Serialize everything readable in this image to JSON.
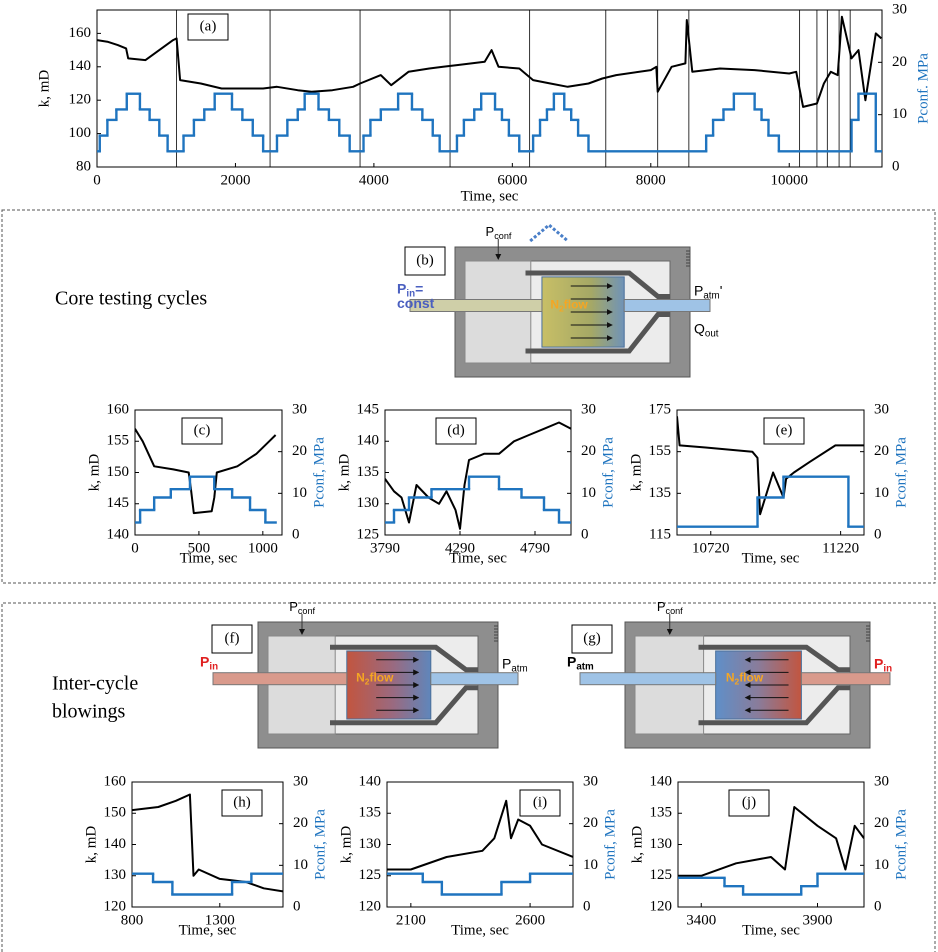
{
  "chart_data": [
    {
      "type": "line",
      "panel": "(a)",
      "xlabel": "Time, sec",
      "ylabel": "k, mD",
      "y2label": "Pconf. MPa",
      "xlim": [
        0,
        11340
      ],
      "ylim": [
        80,
        174
      ],
      "y2lim": [
        0,
        30
      ],
      "xticks": [
        0,
        2000,
        4000,
        6000,
        8000,
        10000
      ],
      "yticks": [
        80,
        100,
        120,
        140,
        160
      ],
      "y2ticks": [
        0,
        10,
        20,
        30
      ],
      "vlines": [
        1150,
        2500,
        3800,
        5100,
        6250,
        7350,
        8100,
        8550,
        10150,
        10400,
        10550,
        10720,
        10880
      ],
      "series": [
        {
          "color": "#000000",
          "x": [
            0,
            150,
            300,
            420,
            450,
            700,
            900,
            1100,
            1150,
            1200,
            1500,
            1800,
            2100,
            2400,
            2600,
            2900,
            3100,
            3400,
            3700,
            3800,
            4100,
            4250,
            4500,
            4800,
            5000,
            5200,
            5600,
            5700,
            5800,
            6100,
            6300,
            6550,
            6800,
            7100,
            7300,
            7500,
            8000,
            8080,
            8100,
            8300,
            8500,
            8520,
            8600,
            9000,
            9500,
            10000,
            10100,
            10200,
            10400,
            10500,
            10600,
            10700,
            10760,
            10900,
            11000,
            11100,
            11250,
            11330
          ],
          "values": [
            156,
            155,
            153,
            151,
            145,
            144,
            150,
            156,
            157,
            132,
            130,
            127,
            127,
            127,
            128,
            126,
            125,
            126,
            128,
            130,
            135,
            129,
            137,
            139,
            140,
            141,
            143,
            150,
            140,
            139,
            132,
            130,
            128,
            130,
            133,
            135,
            138,
            140,
            125,
            140,
            142,
            168,
            137,
            139,
            138,
            136,
            137,
            116,
            118,
            130,
            137,
            135,
            170,
            145,
            150,
            120,
            160,
            157
          ]
        },
        {
          "color": "#1f74bf",
          "axis": "y2",
          "step": true,
          "bins": [
            0,
            40,
            150,
            280,
            430,
            620,
            760,
            900,
            1020,
            1150,
            1250,
            1400,
            1550,
            1700,
            1950,
            2100,
            2250,
            2400,
            2500,
            2600,
            2750,
            2900,
            3000,
            3200,
            3350,
            3500,
            3650,
            3800,
            3850,
            3950,
            4100,
            4350,
            4550,
            4700,
            4850,
            4950,
            5100,
            5200,
            5300,
            5450,
            5550,
            5750,
            5850,
            5950,
            6100,
            6250,
            6300,
            6400,
            6500,
            6600,
            6750,
            6850,
            6950,
            7100,
            7350,
            8800,
            8900,
            9050,
            9200,
            9500,
            9600,
            9700,
            9850,
            10900,
            11000,
            11250,
            11340
          ],
          "values": [
            3,
            6,
            9,
            11,
            14,
            11,
            9,
            6,
            3,
            3,
            6,
            9,
            11,
            14,
            11,
            9,
            6,
            3,
            3,
            6,
            9,
            11,
            14,
            11,
            9,
            6,
            3,
            3,
            6,
            9,
            11,
            14,
            11,
            9,
            6,
            3,
            3,
            6,
            9,
            11,
            14,
            11,
            9,
            6,
            3,
            3,
            6,
            9,
            11,
            14,
            11,
            9,
            6,
            3,
            3,
            6,
            9,
            11,
            14,
            11,
            9,
            6,
            3,
            9,
            14,
            3
          ]
        }
      ]
    },
    {
      "type": "line",
      "panel": "(c)",
      "xlabel": "Time, sec",
      "ylabel": "k, mD",
      "y2label": "Pconf, MPa",
      "xlim": [
        0,
        1150
      ],
      "ylim": [
        140,
        160
      ],
      "y2lim": [
        0,
        30
      ],
      "xticks": [
        0,
        500,
        1000
      ],
      "yticks": [
        140,
        145,
        150,
        155,
        160
      ],
      "y2ticks": [
        0,
        10,
        20,
        30
      ],
      "series": [
        {
          "color": "#000000",
          "x": [
            0,
            30,
            60,
            150,
            300,
            420,
            440,
            460,
            600,
            620,
            640,
            800,
            950,
            1050,
            1100
          ],
          "values": [
            157,
            156,
            155,
            151,
            150.5,
            150,
            147,
            143.5,
            143.8,
            146,
            150,
            151,
            153,
            155,
            156
          ]
        },
        {
          "color": "#1f74bf",
          "axis": "y2",
          "step": true,
          "bins": [
            0,
            40,
            150,
            280,
            430,
            620,
            760,
            900,
            1020,
            1100
          ],
          "values": [
            3,
            6,
            9,
            11,
            14,
            11,
            9,
            6,
            3
          ]
        }
      ]
    },
    {
      "type": "line",
      "panel": "(d)",
      "xlabel": "Time, sec",
      "ylabel": "k, mD",
      "y2label": "Pconf, MPa",
      "xlim": [
        3790,
        5030
      ],
      "ylim": [
        125,
        145
      ],
      "y2lim": [
        0,
        30
      ],
      "xticks": [
        3790,
        4290,
        4790
      ],
      "yticks": [
        125,
        130,
        135,
        140,
        145
      ],
      "y2ticks": [
        0,
        10,
        20,
        30
      ],
      "series": [
        {
          "color": "#000000",
          "x": [
            3790,
            3850,
            3900,
            3950,
            4000,
            4080,
            4150,
            4200,
            4260,
            4290,
            4320,
            4350,
            4450,
            4550,
            4650,
            4750,
            4850,
            4950,
            5030
          ],
          "values": [
            134,
            132,
            131,
            127,
            133,
            131,
            130,
            132,
            129,
            126,
            133,
            137,
            138,
            138,
            140,
            141,
            142,
            143,
            142
          ]
        },
        {
          "color": "#1f74bf",
          "axis": "y2",
          "step": true,
          "bins": [
            3790,
            3850,
            3950,
            4100,
            4350,
            4550,
            4700,
            4850,
            4950,
            5030
          ],
          "values": [
            3,
            6,
            9,
            11,
            14,
            11,
            9,
            6,
            3
          ]
        }
      ]
    },
    {
      "type": "line",
      "panel": "(e)",
      "xlabel": "Time, sec",
      "ylabel": "k, mD",
      "y2label": "Pconf, MPa",
      "xlim": [
        10590,
        11310
      ],
      "ylim": [
        115,
        175
      ],
      "y2lim": [
        0,
        30
      ],
      "xticks": [
        10720,
        11220
      ],
      "yticks": [
        115,
        135,
        155,
        175
      ],
      "y2ticks": [
        0,
        10,
        20,
        30
      ],
      "series": [
        {
          "color": "#000000",
          "x": [
            10590,
            10600,
            10700,
            10880,
            10900,
            10910,
            10960,
            11000,
            11010,
            11040,
            11100,
            11200,
            11310
          ],
          "values": [
            172,
            158,
            157,
            155,
            152,
            125,
            145,
            133,
            142,
            145,
            150,
            158,
            158
          ]
        },
        {
          "color": "#1f74bf",
          "axis": "y2",
          "step": true,
          "bins": [
            10590,
            10900,
            11000,
            11250,
            11310
          ],
          "values": [
            2,
            9,
            14,
            2
          ]
        }
      ]
    },
    {
      "type": "line",
      "panel": "(h)",
      "xlabel": "Time, sec",
      "ylabel": "k, mD",
      "y2label": "Pconf, MPa",
      "xlim": [
        800,
        1660
      ],
      "ylim": [
        120,
        160
      ],
      "y2lim": [
        0,
        30
      ],
      "xticks": [
        800,
        1300
      ],
      "yticks": [
        120,
        130,
        140,
        150,
        160
      ],
      "y2ticks": [
        0,
        10,
        20,
        30
      ],
      "series": [
        {
          "color": "#000000",
          "x": [
            800,
            950,
            1050,
            1130,
            1150,
            1180,
            1300,
            1450,
            1550,
            1660
          ],
          "values": [
            151,
            152,
            154,
            156,
            130,
            132,
            129,
            128,
            126,
            125
          ]
        },
        {
          "color": "#1f74bf",
          "axis": "y2",
          "step": true,
          "bins": [
            800,
            920,
            1030,
            1370,
            1480,
            1660
          ],
          "values": [
            8,
            6,
            3,
            6,
            8
          ]
        }
      ]
    },
    {
      "type": "line",
      "panel": "(i)",
      "xlabel": "Time, sec",
      "ylabel": "k, mD",
      "y2label": "Pconf, MPa",
      "xlim": [
        2000,
        2780
      ],
      "ylim": [
        120,
        140
      ],
      "y2lim": [
        0,
        30
      ],
      "xticks": [
        2100,
        2600
      ],
      "yticks": [
        120,
        125,
        130,
        135,
        140
      ],
      "y2ticks": [
        0,
        10,
        20,
        30
      ],
      "series": [
        {
          "color": "#000000",
          "x": [
            2000,
            2100,
            2250,
            2400,
            2450,
            2500,
            2520,
            2550,
            2600,
            2650,
            2780
          ],
          "values": [
            126,
            126,
            128,
            129,
            131,
            137,
            131,
            134,
            133,
            130,
            128
          ]
        },
        {
          "color": "#1f74bf",
          "axis": "y2",
          "step": true,
          "bins": [
            2000,
            2150,
            2230,
            2480,
            2600,
            2780
          ],
          "values": [
            8,
            6,
            3,
            6,
            8
          ]
        }
      ]
    },
    {
      "type": "line",
      "panel": "(j)",
      "xlabel": "Time, sec",
      "ylabel": "k, mD",
      "y2label": "Pconf, MPa",
      "xlim": [
        3300,
        4100
      ],
      "ylim": [
        120,
        140
      ],
      "y2lim": [
        0,
        30
      ],
      "xticks": [
        3400,
        3900
      ],
      "yticks": [
        120,
        125,
        130,
        135,
        140
      ],
      "y2ticks": [
        0,
        10,
        20,
        30
      ],
      "series": [
        {
          "color": "#000000",
          "x": [
            3300,
            3400,
            3550,
            3700,
            3760,
            3800,
            3900,
            3980,
            4020,
            4060,
            4100
          ],
          "values": [
            125,
            125,
            127,
            128,
            126,
            136,
            133,
            131,
            126,
            133,
            131
          ]
        },
        {
          "color": "#1f74bf",
          "axis": "y2",
          "step": true,
          "bins": [
            3300,
            3500,
            3580,
            3830,
            3900,
            4100
          ],
          "values": [
            7,
            5,
            3,
            5,
            8
          ]
        }
      ]
    }
  ],
  "sections": [
    [
      "Core testing cycles"
    ],
    [
      "Inter-cycle",
      "blowings"
    ]
  ],
  "diagrams": [
    {
      "label": "(b)",
      "p_conf": [
        "P",
        "conf"
      ],
      "p_left": [
        "P",
        "in",
        "="
      ],
      "left_extra": "const",
      "left_color": "#4a5fc0",
      "flow": [
        "N",
        "2",
        "flow"
      ],
      "p_right": [
        "P",
        "atm",
        "'"
      ],
      "right_color": "#000000",
      "q_out": [
        "Q",
        "out"
      ]
    },
    {
      "label": "(f)",
      "p_conf": [
        "P",
        "conf"
      ],
      "p_left": [
        "P",
        "in"
      ],
      "left_color": "#e02020",
      "flow": [
        "N",
        "2",
        "flow"
      ],
      "p_right": [
        "P",
        "atm"
      ],
      "right_color": "#000000"
    },
    {
      "label": "(g)",
      "p_conf": [
        "P",
        "conf"
      ],
      "p_left": [
        "P",
        "atm"
      ],
      "left_color": "#000000",
      "flow": [
        "N",
        "2",
        "flow"
      ],
      "p_right": [
        "P",
        "in"
      ],
      "right_color": "#e02020"
    }
  ]
}
